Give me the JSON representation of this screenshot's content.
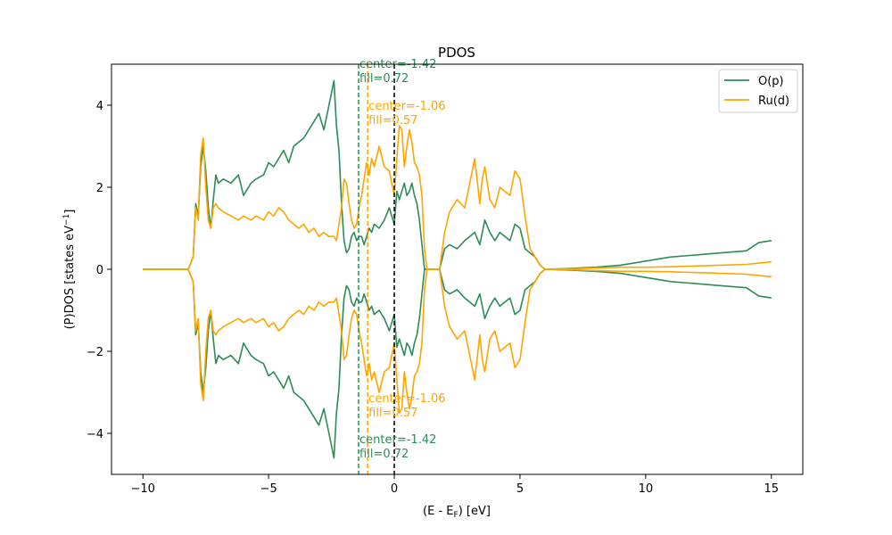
{
  "chart_data": {
    "type": "line",
    "title": "PDOS",
    "xlabel_main": "(E - E",
    "xlabel_sub": "F",
    "xlabel_tail": ") [eV]",
    "ylabel_main": "(P)DOS [states eV",
    "ylabel_sup": "−1",
    "ylabel_tail": "]",
    "xlim": [
      -11.25,
      16.25
    ],
    "ylim": [
      -5.0,
      5.0
    ],
    "xticks": [
      -10,
      -5,
      0,
      5,
      10,
      15
    ],
    "xtick_labels": [
      "−10",
      "−5",
      "0",
      "5",
      "10",
      "15"
    ],
    "yticks": [
      -4,
      -2,
      0,
      2,
      4
    ],
    "ytick_labels": [
      "−4",
      "−2",
      "0",
      "2",
      "4"
    ],
    "legend_position": "top-right",
    "fermi_level": 0,
    "fermi_color": "#000000",
    "series": [
      {
        "name": "O(p)",
        "color": "#2e8b57",
        "band_center": -1.42,
        "annot_up": [
          "center=-1.42",
          "fill=0.72"
        ],
        "annot_down": [
          "center=-1.42",
          "fill=0.72"
        ],
        "x": [
          -10,
          -8.2,
          -8.0,
          -7.9,
          -7.8,
          -7.7,
          -7.6,
          -7.5,
          -7.4,
          -7.3,
          -7.2,
          -7.1,
          -7.0,
          -6.8,
          -6.5,
          -6.2,
          -6.0,
          -5.7,
          -5.5,
          -5.2,
          -5.0,
          -4.8,
          -4.6,
          -4.4,
          -4.2,
          -4.0,
          -3.8,
          -3.6,
          -3.4,
          -3.2,
          -3.0,
          -2.8,
          -2.6,
          -2.4,
          -2.3,
          -2.2,
          -2.1,
          -2.0,
          -1.9,
          -1.8,
          -1.7,
          -1.6,
          -1.5,
          -1.4,
          -1.3,
          -1.2,
          -1.1,
          -1.0,
          -0.9,
          -0.8,
          -0.6,
          -0.4,
          -0.2,
          0.0,
          0.1,
          0.2,
          0.3,
          0.4,
          0.5,
          0.6,
          0.7,
          0.8,
          0.9,
          1.0,
          1.1,
          1.2,
          1.3,
          1.5,
          1.8,
          2.0,
          2.2,
          2.5,
          2.8,
          3.0,
          3.2,
          3.4,
          3.5,
          3.6,
          3.8,
          4.0,
          4.2,
          4.4,
          4.6,
          4.8,
          5.0,
          5.2,
          5.4,
          5.6,
          5.8,
          6.0,
          7.0,
          8.0,
          9.0,
          10.0,
          11.0,
          12.0,
          13.0,
          14.0,
          14.5,
          15.0
        ],
        "values": [
          0,
          0,
          0.3,
          1.6,
          1.3,
          2.5,
          3.0,
          2.4,
          1.5,
          1.0,
          1.7,
          2.3,
          2.1,
          2.2,
          2.1,
          2.3,
          1.8,
          2.1,
          2.2,
          2.3,
          2.6,
          2.5,
          2.7,
          2.9,
          2.6,
          3.0,
          3.1,
          3.2,
          3.4,
          3.6,
          3.8,
          3.4,
          4.0,
          4.6,
          3.5,
          2.9,
          1.6,
          0.7,
          0.4,
          0.5,
          0.8,
          0.9,
          0.7,
          0.8,
          0.8,
          0.6,
          0.8,
          1.0,
          0.9,
          1.1,
          1.0,
          1.2,
          1.5,
          1.1,
          1.9,
          1.7,
          1.9,
          2.1,
          1.8,
          1.9,
          2.1,
          1.8,
          1.6,
          1.2,
          0.6,
          0.0,
          0.0,
          0.0,
          0.0,
          0.5,
          0.6,
          0.5,
          0.7,
          0.8,
          0.9,
          0.6,
          0.9,
          1.2,
          0.9,
          0.7,
          0.9,
          0.8,
          0.7,
          1.1,
          1.0,
          0.5,
          0.4,
          0.3,
          0.1,
          0.0,
          0.02,
          0.05,
          0.1,
          0.2,
          0.3,
          0.35,
          0.4,
          0.45,
          0.65,
          0.7
        ]
      },
      {
        "name": "Ru(d)",
        "color": "#ffa500",
        "band_center": -1.06,
        "annot_up": [
          "center=-1.06",
          "fill=0.57"
        ],
        "annot_down": [
          "center=-1.06",
          "fill=0.57"
        ],
        "x": [
          -10,
          -8.2,
          -8.0,
          -7.9,
          -7.8,
          -7.7,
          -7.6,
          -7.5,
          -7.4,
          -7.3,
          -7.2,
          -7.1,
          -7.0,
          -6.8,
          -6.5,
          -6.2,
          -6.0,
          -5.7,
          -5.5,
          -5.2,
          -5.0,
          -4.8,
          -4.6,
          -4.4,
          -4.2,
          -4.0,
          -3.8,
          -3.6,
          -3.4,
          -3.2,
          -3.0,
          -2.8,
          -2.6,
          -2.4,
          -2.3,
          -2.2,
          -2.1,
          -2.0,
          -1.9,
          -1.8,
          -1.7,
          -1.6,
          -1.5,
          -1.4,
          -1.3,
          -1.2,
          -1.1,
          -1.0,
          -0.9,
          -0.8,
          -0.6,
          -0.4,
          -0.2,
          0.0,
          0.1,
          0.2,
          0.3,
          0.4,
          0.5,
          0.6,
          0.7,
          0.8,
          0.9,
          1.0,
          1.1,
          1.2,
          1.3,
          1.5,
          1.8,
          2.0,
          2.2,
          2.5,
          2.8,
          3.0,
          3.2,
          3.4,
          3.5,
          3.6,
          3.8,
          4.0,
          4.2,
          4.4,
          4.6,
          4.8,
          5.0,
          5.2,
          5.4,
          5.6,
          5.8,
          6.0,
          7.0,
          8.0,
          9.0,
          10.0,
          11.0,
          12.0,
          13.0,
          14.0,
          14.5,
          15.0
        ],
        "values": [
          0,
          0,
          0.3,
          1.5,
          1.2,
          2.8,
          3.2,
          2.0,
          1.2,
          1.0,
          1.5,
          1.6,
          1.5,
          1.4,
          1.3,
          1.2,
          1.3,
          1.2,
          1.3,
          1.2,
          1.4,
          1.3,
          1.5,
          1.4,
          1.2,
          1.1,
          1.0,
          1.1,
          0.9,
          1.0,
          0.8,
          0.9,
          0.8,
          0.8,
          0.7,
          1.1,
          1.5,
          2.2,
          2.1,
          1.6,
          1.2,
          1.0,
          1.1,
          1.5,
          1.8,
          2.2,
          2.6,
          2.3,
          2.7,
          2.5,
          3.0,
          2.5,
          2.4,
          1.8,
          2.7,
          3.5,
          3.4,
          2.5,
          3.0,
          3.4,
          3.1,
          2.6,
          2.5,
          2.3,
          1.8,
          0.5,
          0.0,
          0.0,
          0.0,
          0.9,
          1.4,
          1.7,
          1.5,
          2.1,
          2.7,
          1.6,
          2.2,
          2.5,
          1.7,
          1.5,
          2.0,
          1.9,
          1.8,
          2.4,
          2.2,
          1.3,
          0.5,
          0.3,
          0.1,
          0.0,
          0.01,
          0.03,
          0.05,
          0.05,
          0.06,
          0.08,
          0.1,
          0.12,
          0.15,
          0.18
        ]
      }
    ]
  }
}
